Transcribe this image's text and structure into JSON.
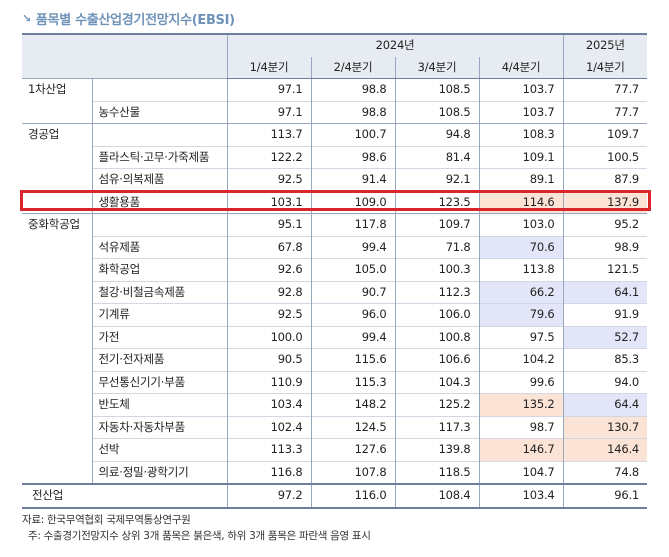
{
  "title": "품목별 수출산업경기전망지수(EBSI)",
  "header": {
    "year_2024": "2024년",
    "year_2025": "2025년",
    "quarters": [
      "1/4분기",
      "2/4분기",
      "3/4분기",
      "4/4분기",
      "1/4분기"
    ]
  },
  "rows": [
    {
      "category": "1차산업",
      "sub": "",
      "values": [
        "97.1",
        "98.8",
        "108.5",
        "103.7",
        "77.7"
      ],
      "group_start": true
    },
    {
      "category": "",
      "sub": "농수산물",
      "values": [
        "97.1",
        "98.8",
        "108.5",
        "103.7",
        "77.7"
      ]
    },
    {
      "category": "경공업",
      "sub": "",
      "values": [
        "113.7",
        "100.7",
        "94.8",
        "108.3",
        "109.7"
      ],
      "group_start": true
    },
    {
      "category": "",
      "sub": "플라스틱·고무·가죽제품",
      "values": [
        "122.2",
        "98.6",
        "81.4",
        "109.1",
        "100.5"
      ]
    },
    {
      "category": "",
      "sub": "섬유·의복제품",
      "values": [
        "92.5",
        "91.4",
        "92.1",
        "89.1",
        "87.9"
      ]
    },
    {
      "category": "",
      "sub": "생활용품",
      "values": [
        "103.1",
        "109.0",
        "123.5",
        "114.6",
        "137.9"
      ],
      "highlight": [
        "",
        "",
        "",
        "red",
        "red"
      ]
    },
    {
      "category": "중화학공업",
      "sub": "",
      "values": [
        "95.1",
        "117.8",
        "109.7",
        "103.0",
        "95.2"
      ],
      "group_start": true
    },
    {
      "category": "",
      "sub": "석유제품",
      "values": [
        "67.8",
        "99.4",
        "71.8",
        "70.6",
        "98.9"
      ],
      "highlight": [
        "",
        "",
        "",
        "blue",
        ""
      ]
    },
    {
      "category": "",
      "sub": "화학공업",
      "values": [
        "92.6",
        "105.0",
        "100.3",
        "113.8",
        "121.5"
      ]
    },
    {
      "category": "",
      "sub": "철강·비철금속제품",
      "values": [
        "92.8",
        "90.7",
        "112.3",
        "66.2",
        "64.1"
      ],
      "highlight": [
        "",
        "",
        "",
        "blue",
        "blue"
      ]
    },
    {
      "category": "",
      "sub": "기계류",
      "values": [
        "92.5",
        "96.0",
        "106.0",
        "79.6",
        "91.9"
      ],
      "highlight": [
        "",
        "",
        "",
        "blue",
        ""
      ]
    },
    {
      "category": "",
      "sub": "가전",
      "values": [
        "100.0",
        "99.4",
        "100.8",
        "97.5",
        "52.7"
      ],
      "highlight": [
        "",
        "",
        "",
        "",
        "blue"
      ]
    },
    {
      "category": "",
      "sub": "전기·전자제품",
      "values": [
        "90.5",
        "115.6",
        "106.6",
        "104.2",
        "85.3"
      ]
    },
    {
      "category": "",
      "sub": "무선통신기기·부품",
      "values": [
        "110.9",
        "115.3",
        "104.3",
        "99.6",
        "94.0"
      ]
    },
    {
      "category": "",
      "sub": "반도체",
      "values": [
        "103.4",
        "148.2",
        "125.2",
        "135.2",
        "64.4"
      ],
      "highlight": [
        "",
        "",
        "",
        "red",
        "blue"
      ]
    },
    {
      "category": "",
      "sub": "자동차·자동차부품",
      "values": [
        "102.4",
        "124.5",
        "117.3",
        "98.7",
        "130.7"
      ],
      "highlight": [
        "",
        "",
        "",
        "",
        "red"
      ]
    },
    {
      "category": "",
      "sub": "선박",
      "values": [
        "113.3",
        "127.6",
        "139.8",
        "146.7",
        "146.4"
      ],
      "highlight": [
        "",
        "",
        "",
        "red",
        "red"
      ]
    },
    {
      "category": "",
      "sub": "의료·정밀·광학기기",
      "values": [
        "116.8",
        "107.8",
        "118.5",
        "104.7",
        "74.8"
      ]
    }
  ],
  "total": {
    "label": "전산업",
    "values": [
      "97.2",
      "116.0",
      "108.4",
      "103.4",
      "96.1"
    ]
  },
  "notes": {
    "source": "자료: 한국무역협회 국제무역통상연구원",
    "note": "주: 수출경기전망지수 상위 3개 품목은 붉은색, 하위 3개 품목은 파란색 음영 표시"
  },
  "colors": {
    "title": "#6f93b8",
    "highlight_box": "#d9262b",
    "top3": "#fbe3d6",
    "bottom3": "#e2e6f8",
    "header_bg": "#e7ebf2"
  }
}
